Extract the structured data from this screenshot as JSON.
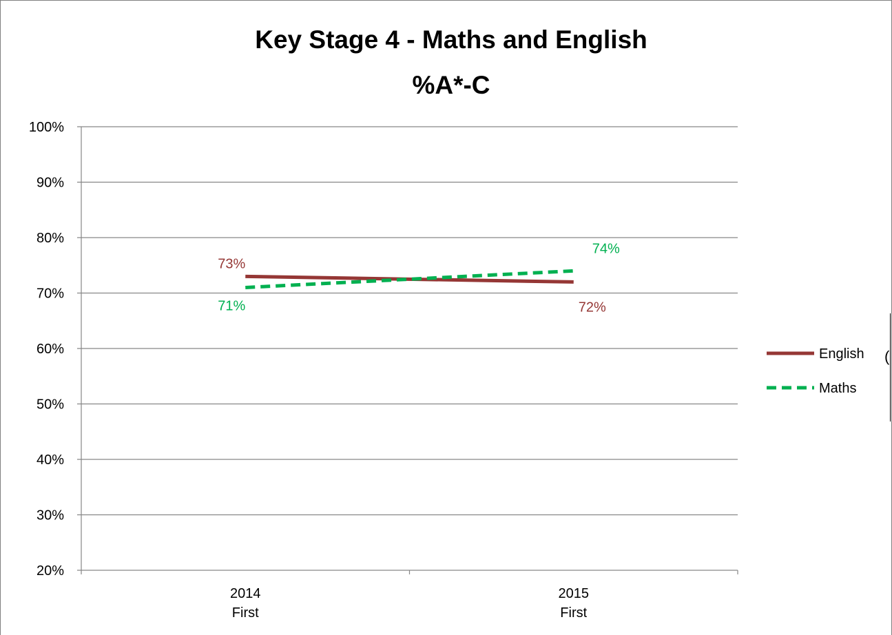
{
  "chart_data": {
    "type": "line",
    "title": [
      "Key Stage 4 - Maths and English",
      "%A*-C"
    ],
    "xlabel": "",
    "ylabel": "",
    "categories": [
      [
        "2014",
        "First"
      ],
      [
        "2015",
        "First"
      ]
    ],
    "ylim": [
      20,
      100
    ],
    "yticks": [
      20,
      30,
      40,
      50,
      60,
      70,
      80,
      90,
      100
    ],
    "ytick_labels": [
      "20%",
      "30%",
      "40%",
      "50%",
      "60%",
      "70%",
      "80%",
      "90%",
      "100%"
    ],
    "grid": true,
    "legend_position": "right",
    "series": [
      {
        "name": "English",
        "values": [
          73,
          72
        ],
        "value_labels": [
          "73%",
          "72%"
        ],
        "color": "#953735",
        "style": "solid"
      },
      {
        "name": "Maths",
        "values": [
          71,
          74
        ],
        "value_labels": [
          "71%",
          "74%"
        ],
        "color": "#00b050",
        "style": "dashed"
      }
    ]
  },
  "edge_text": "("
}
